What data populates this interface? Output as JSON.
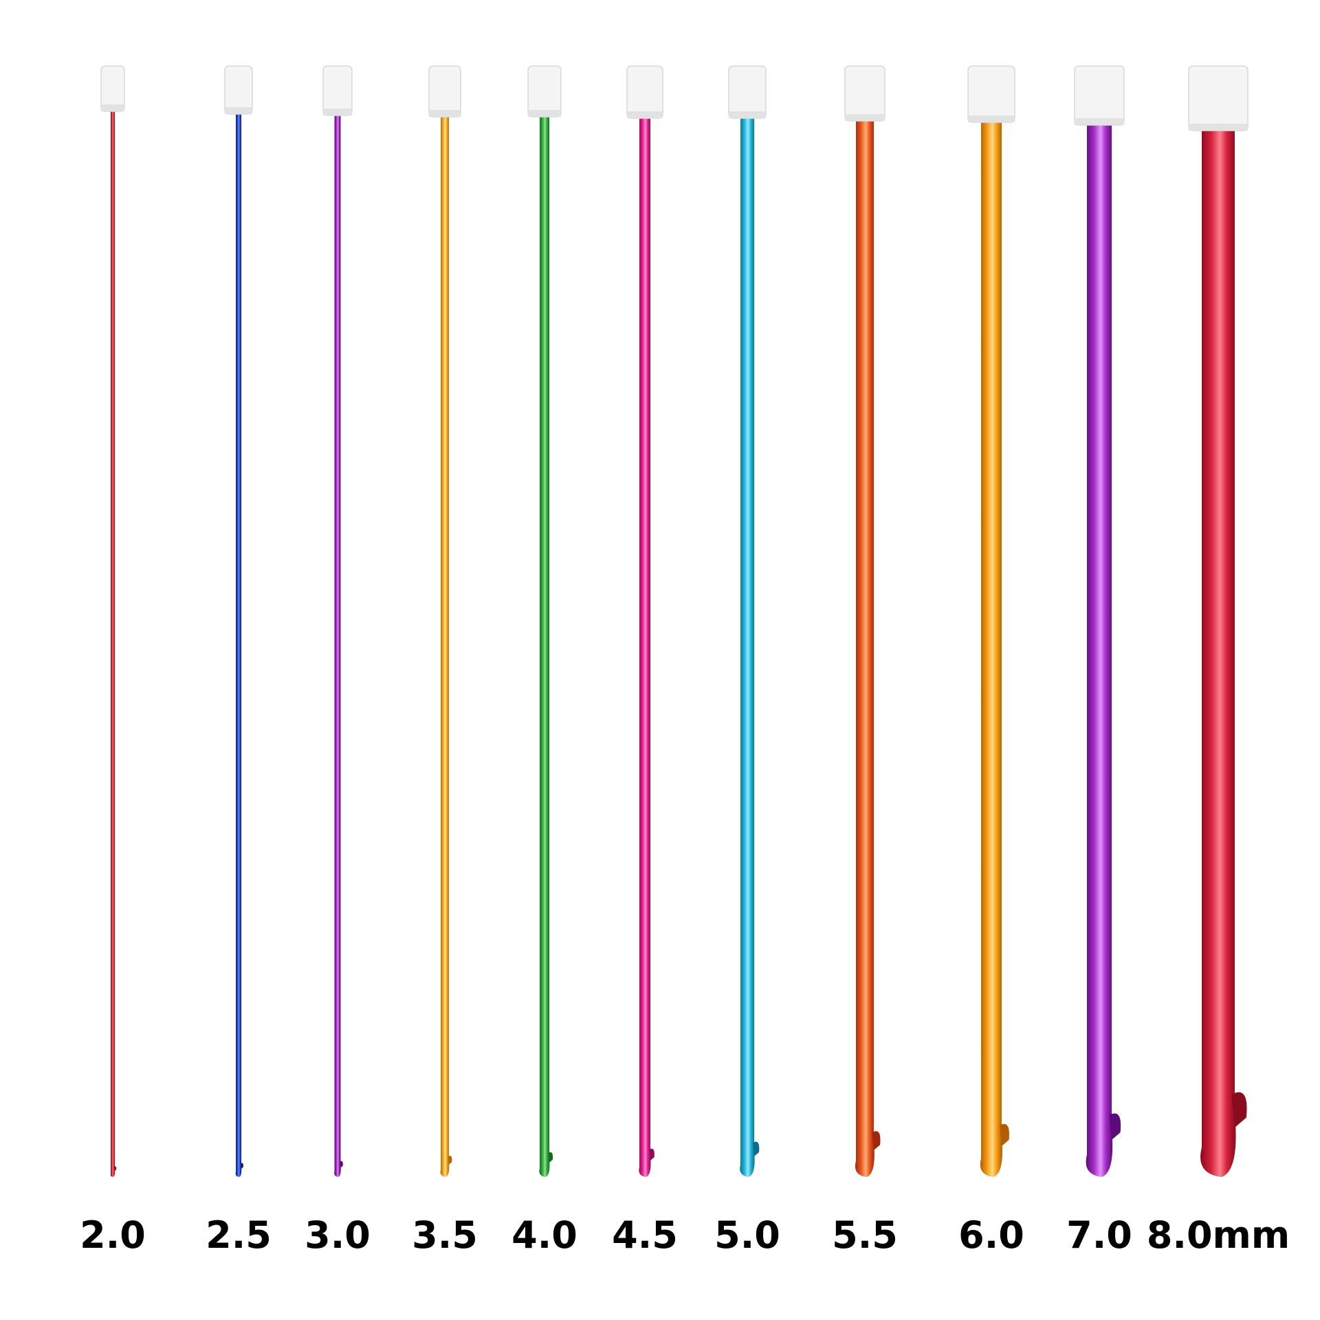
{
  "hooks": [
    {
      "label": "2.0"
    },
    {
      "label": "2.5"
    },
    {
      "label": "3.0"
    },
    {
      "label": "3.5"
    },
    {
      "label": "4.0"
    },
    {
      "label": "4.5"
    },
    {
      "label": "5.0"
    },
    {
      "label": "5.5"
    },
    {
      "label": "6.0"
    },
    {
      "label": "7.0"
    },
    {
      "label": "8.0mm"
    }
  ]
}
